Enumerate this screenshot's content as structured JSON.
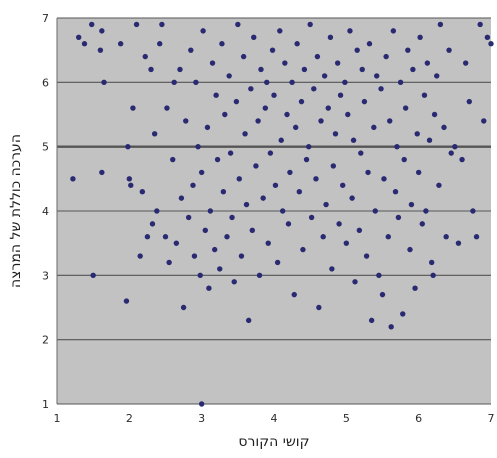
{
  "chart_data": {
    "type": "scatter",
    "xlabel": "קושי הקורס",
    "ylabel": "הערכה כוללת של המרצה",
    "xlim": [
      1,
      7
    ],
    "ylim": [
      1,
      7
    ],
    "x_ticks": [
      "1",
      "2",
      "3",
      "4",
      "5",
      "6",
      "7"
    ],
    "y_ticks": [
      "1",
      "2",
      "3",
      "4",
      "5",
      "6",
      "7"
    ],
    "grid": "horizontal",
    "legend": "none",
    "colors": {
      "plot_background": "#c2c2c2",
      "points": "#2a2a72",
      "gridlines": "#555555"
    },
    "series": [
      {
        "values_note_free": true,
        "points": [
          [
            1.22,
            4.5
          ],
          [
            1.3,
            6.7
          ],
          [
            1.38,
            6.6
          ],
          [
            1.5,
            3.0
          ],
          [
            1.48,
            6.9
          ],
          [
            1.62,
            6.8
          ],
          [
            1.6,
            6.5
          ],
          [
            1.65,
            6.0
          ],
          [
            1.62,
            4.6
          ],
          [
            1.88,
            6.6
          ],
          [
            1.96,
            2.6
          ],
          [
            1.98,
            5.0
          ],
          [
            2.0,
            4.5
          ],
          [
            2.02,
            4.4
          ],
          [
            2.05,
            5.6
          ],
          [
            2.1,
            6.9
          ],
          [
            2.15,
            3.3
          ],
          [
            2.18,
            4.3
          ],
          [
            2.22,
            6.4
          ],
          [
            2.25,
            3.6
          ],
          [
            2.3,
            6.2
          ],
          [
            2.32,
            3.8
          ],
          [
            2.35,
            5.2
          ],
          [
            2.38,
            4.0
          ],
          [
            2.42,
            6.6
          ],
          [
            2.45,
            6.9
          ],
          [
            2.5,
            3.6
          ],
          [
            2.52,
            5.6
          ],
          [
            2.55,
            3.2
          ],
          [
            2.6,
            4.8
          ],
          [
            2.62,
            6.0
          ],
          [
            2.65,
            3.5
          ],
          [
            2.7,
            6.2
          ],
          [
            2.72,
            4.2
          ],
          [
            2.75,
            2.5
          ],
          [
            2.78,
            5.4
          ],
          [
            2.82,
            3.9
          ],
          [
            2.85,
            6.5
          ],
          [
            2.88,
            4.4
          ],
          [
            2.9,
            3.3
          ],
          [
            2.92,
            6.0
          ],
          [
            2.95,
            5.0
          ],
          [
            2.98,
            3.0
          ],
          [
            3.0,
            1.0
          ],
          [
            3.0,
            4.6
          ],
          [
            3.02,
            6.8
          ],
          [
            3.05,
            3.7
          ],
          [
            3.08,
            5.3
          ],
          [
            3.1,
            2.8
          ],
          [
            3.12,
            4.0
          ],
          [
            3.15,
            6.3
          ],
          [
            3.18,
            3.4
          ],
          [
            3.2,
            5.8
          ],
          [
            3.22,
            4.8
          ],
          [
            3.25,
            3.1
          ],
          [
            3.28,
            6.6
          ],
          [
            3.3,
            4.3
          ],
          [
            3.32,
            5.5
          ],
          [
            3.35,
            3.6
          ],
          [
            3.38,
            6.1
          ],
          [
            3.4,
            4.9
          ],
          [
            3.42,
            3.9
          ],
          [
            3.45,
            2.9
          ],
          [
            3.48,
            5.7
          ],
          [
            3.5,
            6.9
          ],
          [
            3.52,
            4.5
          ],
          [
            3.55,
            3.3
          ],
          [
            3.58,
            6.4
          ],
          [
            3.6,
            5.2
          ],
          [
            3.62,
            4.1
          ],
          [
            3.65,
            2.3
          ],
          [
            3.68,
            5.9
          ],
          [
            3.7,
            3.7
          ],
          [
            3.72,
            6.7
          ],
          [
            3.75,
            4.7
          ],
          [
            3.78,
            5.4
          ],
          [
            3.8,
            3.0
          ],
          [
            3.82,
            6.2
          ],
          [
            3.85,
            4.2
          ],
          [
            3.88,
            5.6
          ],
          [
            3.9,
            6.0
          ],
          [
            3.92,
            3.5
          ],
          [
            3.95,
            4.9
          ],
          [
            3.98,
            6.5
          ],
          [
            4.0,
            5.8
          ],
          [
            4.02,
            4.4
          ],
          [
            4.05,
            3.2
          ],
          [
            4.08,
            6.8
          ],
          [
            4.1,
            5.1
          ],
          [
            4.12,
            4.0
          ],
          [
            4.15,
            6.3
          ],
          [
            4.18,
            5.5
          ],
          [
            4.2,
            3.8
          ],
          [
            4.22,
            4.6
          ],
          [
            4.25,
            6.0
          ],
          [
            4.28,
            2.7
          ],
          [
            4.3,
            5.3
          ],
          [
            4.32,
            6.6
          ],
          [
            4.35,
            4.3
          ],
          [
            4.38,
            5.7
          ],
          [
            4.4,
            3.4
          ],
          [
            4.42,
            6.2
          ],
          [
            4.45,
            4.8
          ],
          [
            4.48,
            5.0
          ],
          [
            4.5,
            6.9
          ],
          [
            4.52,
            3.9
          ],
          [
            4.55,
            5.9
          ],
          [
            4.58,
            4.5
          ],
          [
            4.6,
            6.4
          ],
          [
            4.62,
            2.5
          ],
          [
            4.65,
            5.4
          ],
          [
            4.68,
            3.6
          ],
          [
            4.7,
            6.1
          ],
          [
            4.72,
            4.1
          ],
          [
            4.75,
            5.6
          ],
          [
            4.78,
            6.7
          ],
          [
            4.8,
            3.1
          ],
          [
            4.82,
            4.7
          ],
          [
            4.85,
            5.2
          ],
          [
            4.88,
            6.3
          ],
          [
            4.9,
            3.8
          ],
          [
            4.92,
            5.8
          ],
          [
            4.95,
            4.4
          ],
          [
            4.98,
            6.0
          ],
          [
            5.0,
            3.5
          ],
          [
            5.02,
            5.5
          ],
          [
            5.05,
            6.8
          ],
          [
            5.08,
            4.2
          ],
          [
            5.1,
            5.1
          ],
          [
            5.12,
            2.9
          ],
          [
            5.15,
            6.5
          ],
          [
            5.18,
            3.7
          ],
          [
            5.2,
            4.9
          ],
          [
            5.22,
            6.2
          ],
          [
            5.25,
            5.7
          ],
          [
            5.28,
            3.3
          ],
          [
            5.3,
            4.6
          ],
          [
            5.32,
            6.6
          ],
          [
            5.35,
            2.3
          ],
          [
            5.38,
            5.3
          ],
          [
            5.4,
            4.0
          ],
          [
            5.42,
            6.1
          ],
          [
            5.45,
            3.0
          ],
          [
            5.48,
            5.9
          ],
          [
            5.5,
            2.7
          ],
          [
            5.52,
            4.5
          ],
          [
            5.55,
            6.4
          ],
          [
            5.58,
            3.6
          ],
          [
            5.6,
            5.4
          ],
          [
            5.62,
            2.2
          ],
          [
            5.65,
            6.8
          ],
          [
            5.68,
            4.3
          ],
          [
            5.7,
            5.0
          ],
          [
            5.72,
            3.9
          ],
          [
            5.75,
            6.0
          ],
          [
            5.78,
            2.4
          ],
          [
            5.8,
            4.8
          ],
          [
            5.82,
            5.6
          ],
          [
            5.85,
            6.5
          ],
          [
            5.88,
            3.4
          ],
          [
            5.9,
            4.1
          ],
          [
            5.92,
            6.2
          ],
          [
            5.95,
            2.8
          ],
          [
            5.98,
            5.2
          ],
          [
            6.0,
            4.6
          ],
          [
            6.02,
            6.7
          ],
          [
            6.05,
            3.8
          ],
          [
            6.08,
            5.8
          ],
          [
            6.1,
            4.0
          ],
          [
            6.12,
            6.3
          ],
          [
            6.15,
            5.1
          ],
          [
            6.18,
            3.2
          ],
          [
            6.2,
            3.0
          ],
          [
            6.22,
            5.5
          ],
          [
            6.25,
            6.1
          ],
          [
            6.28,
            4.4
          ],
          [
            6.3,
            6.9
          ],
          [
            6.35,
            5.3
          ],
          [
            6.38,
            3.6
          ],
          [
            6.42,
            6.5
          ],
          [
            6.45,
            4.9
          ],
          [
            6.5,
            5.0
          ],
          [
            6.55,
            3.5
          ],
          [
            6.6,
            4.8
          ],
          [
            6.65,
            6.3
          ],
          [
            6.7,
            5.7
          ],
          [
            6.75,
            4.0
          ],
          [
            6.8,
            3.6
          ],
          [
            6.85,
            6.9
          ],
          [
            6.9,
            5.4
          ],
          [
            6.95,
            6.7
          ],
          [
            7.0,
            6.6
          ]
        ]
      }
    ]
  }
}
